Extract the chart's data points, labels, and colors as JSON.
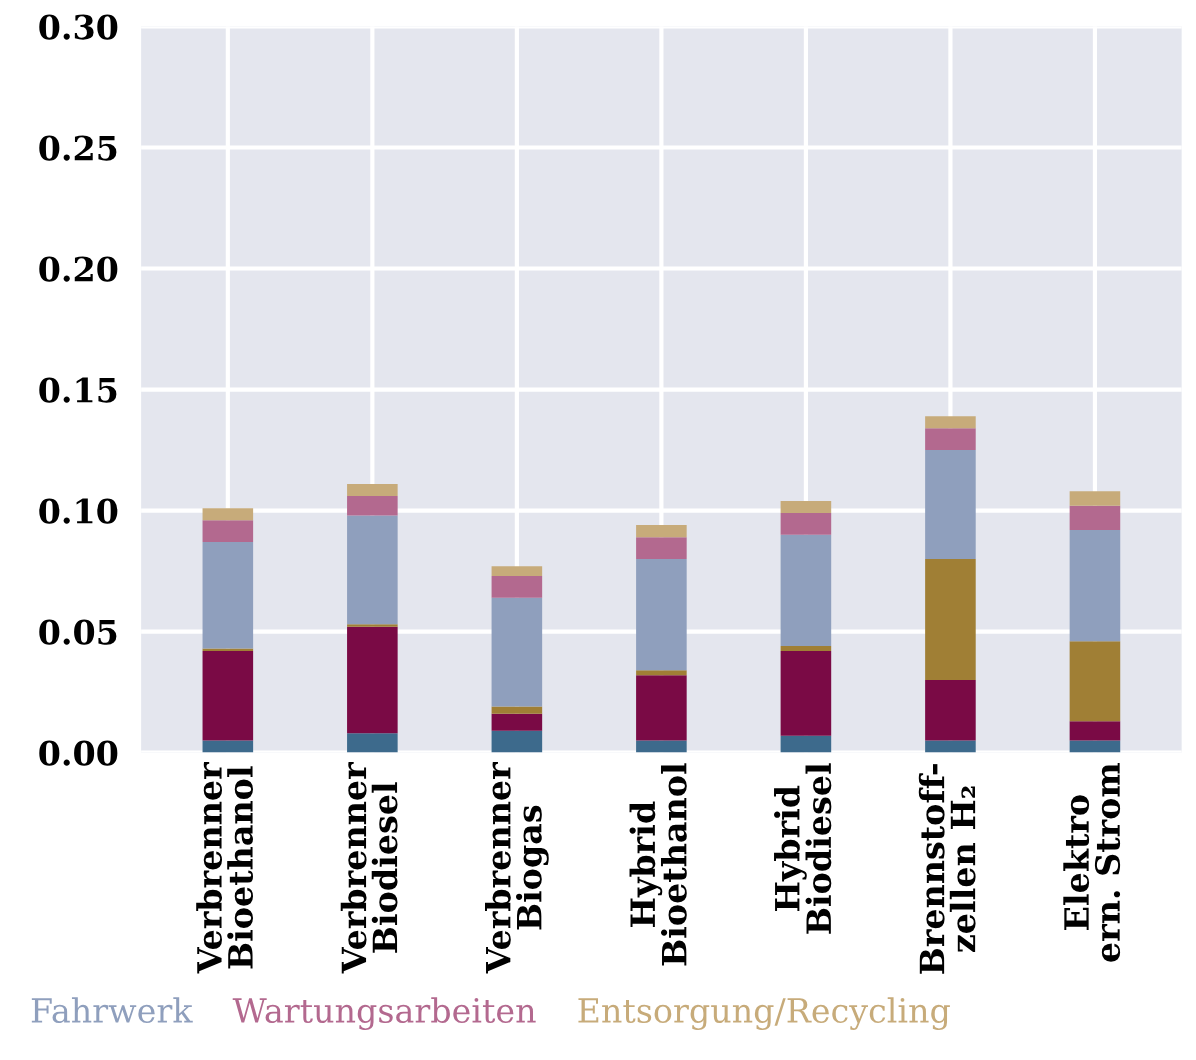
{
  "chart_data": {
    "type": "bar",
    "stacked": true,
    "categories": [
      "Verbrenner\nBioethanol",
      "Verbrenner\nBiodiesel",
      "Verbrenner\nBiogas",
      "Hybrid\nBioethanol",
      "Hybrid\nBiodiesel",
      "Brennstoff-\nzellen H₂",
      "Elektro\nern. Strom"
    ],
    "series": [
      {
        "color": "#3d6a8c",
        "values": [
          0.005,
          0.008,
          0.009,
          0.005,
          0.007,
          0.005,
          0.005
        ]
      },
      {
        "color": "#7a0a45",
        "values": [
          0.037,
          0.044,
          0.007,
          0.027,
          0.035,
          0.025,
          0.008
        ]
      },
      {
        "color": "#a07f35",
        "values": [
          0.001,
          0.001,
          0.003,
          0.002,
          0.002,
          0.05,
          0.033
        ]
      },
      {
        "name": "Fahrwerk",
        "color": "#8f9fbd",
        "values": [
          0.044,
          0.045,
          0.045,
          0.046,
          0.046,
          0.045,
          0.046
        ]
      },
      {
        "name": "Wartungsarbeiten",
        "color": "#b3698f",
        "values": [
          0.009,
          0.008,
          0.009,
          0.009,
          0.009,
          0.009,
          0.01
        ]
      },
      {
        "name": "Entsorgung/Recycling",
        "color": "#c7ab7a",
        "values": [
          0.005,
          0.005,
          0.004,
          0.005,
          0.005,
          0.005,
          0.006
        ]
      }
    ],
    "ylim": [
      0,
      0.3
    ],
    "yticks": [
      {
        "value": 0,
        "label": "0.00"
      },
      {
        "value": 0.05,
        "label": "0.05"
      },
      {
        "value": 0.1,
        "label": "0.10"
      },
      {
        "value": 0.15,
        "label": "0.15"
      },
      {
        "value": 0.2,
        "label": "0.20"
      },
      {
        "value": 0.25,
        "label": "0.25"
      },
      {
        "value": 0.3,
        "label": "0.30"
      }
    ],
    "grid": true,
    "legend": "bottom left"
  }
}
